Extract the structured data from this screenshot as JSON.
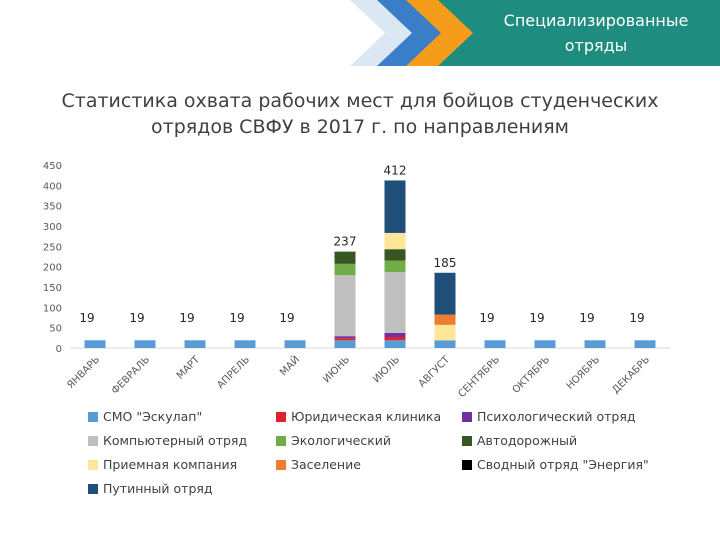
{
  "header": {
    "title": "Специализированные отряды",
    "colors": {
      "teal": "#1e8c7e",
      "orange": "#f59c1a",
      "blue": "#3a7ec8",
      "light": "#dbe7f2"
    }
  },
  "chart_data": {
    "type": "bar",
    "stacked": true,
    "title": "Статистика охвата рабочих мест для бойцов студенческих отрядов СВФУ в 2017 г. по направлениям",
    "xlabel": "",
    "ylabel": "",
    "ylim": [
      0,
      450
    ],
    "yticks": [
      0,
      50,
      100,
      150,
      200,
      250,
      300,
      350,
      400,
      450
    ],
    "grid": false,
    "legend_position": "bottom",
    "categories": [
      "ЯНВАРЬ",
      "ФЕВРАЛЬ",
      "МАРТ",
      "АПРЕЛЬ",
      "МАЙ",
      "ИЮНЬ",
      "ИЮЛЬ",
      "АВГУСТ",
      "СЕНТЯБРЬ",
      "ОКТЯБРЬ",
      "НОЯБРЬ",
      "ДЕКАБРЬ"
    ],
    "totals": [
      19,
      19,
      19,
      19,
      19,
      237,
      412,
      185,
      19,
      19,
      19,
      19
    ],
    "series": [
      {
        "name": "СМО \"Эскулап\"",
        "color": "#5b9bd5",
        "values": [
          19,
          19,
          19,
          19,
          19,
          19,
          19,
          19,
          19,
          19,
          19,
          19
        ]
      },
      {
        "name": "Юридическая клиника",
        "color": "#e0202a",
        "values": [
          0,
          0,
          0,
          0,
          0,
          5,
          8,
          0,
          0,
          0,
          0,
          0
        ]
      },
      {
        "name": "Психологический отряд",
        "color": "#7030a0",
        "values": [
          0,
          0,
          0,
          0,
          0,
          5,
          10,
          0,
          0,
          0,
          0,
          0
        ]
      },
      {
        "name": "Компьютерный отряд",
        "color": "#bfbfbf",
        "values": [
          0,
          0,
          0,
          0,
          0,
          150,
          150,
          0,
          0,
          0,
          0,
          0
        ]
      },
      {
        "name": "Экологический",
        "color": "#70ad47",
        "values": [
          0,
          0,
          0,
          0,
          0,
          28,
          28,
          0,
          0,
          0,
          0,
          0
        ]
      },
      {
        "name": "Автодорожный",
        "color": "#375623",
        "values": [
          0,
          0,
          0,
          0,
          0,
          30,
          28,
          0,
          0,
          0,
          0,
          0
        ]
      },
      {
        "name": "Приемная компания",
        "color": "#ffe699",
        "values": [
          0,
          0,
          0,
          0,
          0,
          0,
          40,
          38,
          0,
          0,
          0,
          0
        ]
      },
      {
        "name": "Заселение",
        "color": "#ed7d31",
        "values": [
          0,
          0,
          0,
          0,
          0,
          0,
          0,
          25,
          0,
          0,
          0,
          0
        ]
      },
      {
        "name": "Сводный отряд \"Энергия\"",
        "color": "#000000",
        "values": [
          0,
          0,
          0,
          0,
          0,
          0,
          0,
          0,
          0,
          0,
          0,
          0
        ]
      },
      {
        "name": "Путинный отряд",
        "color": "#1f4e79",
        "values": [
          0,
          0,
          0,
          0,
          0,
          0,
          129,
          103,
          0,
          0,
          0,
          0
        ]
      }
    ]
  }
}
